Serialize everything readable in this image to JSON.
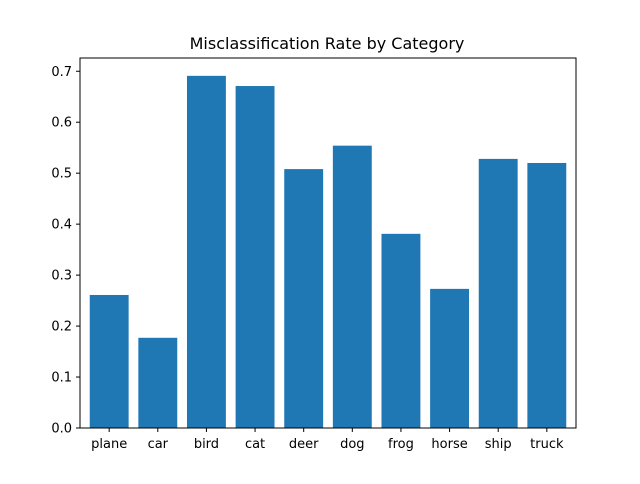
{
  "chart_data": {
    "type": "bar",
    "title": "Misclassification Rate by Category",
    "xlabel": "",
    "ylabel": "",
    "categories": [
      "plane",
      "car",
      "bird",
      "cat",
      "deer",
      "dog",
      "frog",
      "horse",
      "ship",
      "truck"
    ],
    "values": [
      0.261,
      0.177,
      0.691,
      0.671,
      0.508,
      0.554,
      0.381,
      0.273,
      0.528,
      0.52
    ],
    "ylim": [
      0,
      0.726
    ],
    "yticks": [
      0.0,
      0.1,
      0.2,
      0.3,
      0.4,
      0.5,
      0.6,
      0.7
    ],
    "ytick_labels": [
      "0.0",
      "0.1",
      "0.2",
      "0.3",
      "0.4",
      "0.5",
      "0.6",
      "0.7"
    ],
    "grid": false,
    "legend": "none",
    "bar_color": "#1f77b4"
  }
}
